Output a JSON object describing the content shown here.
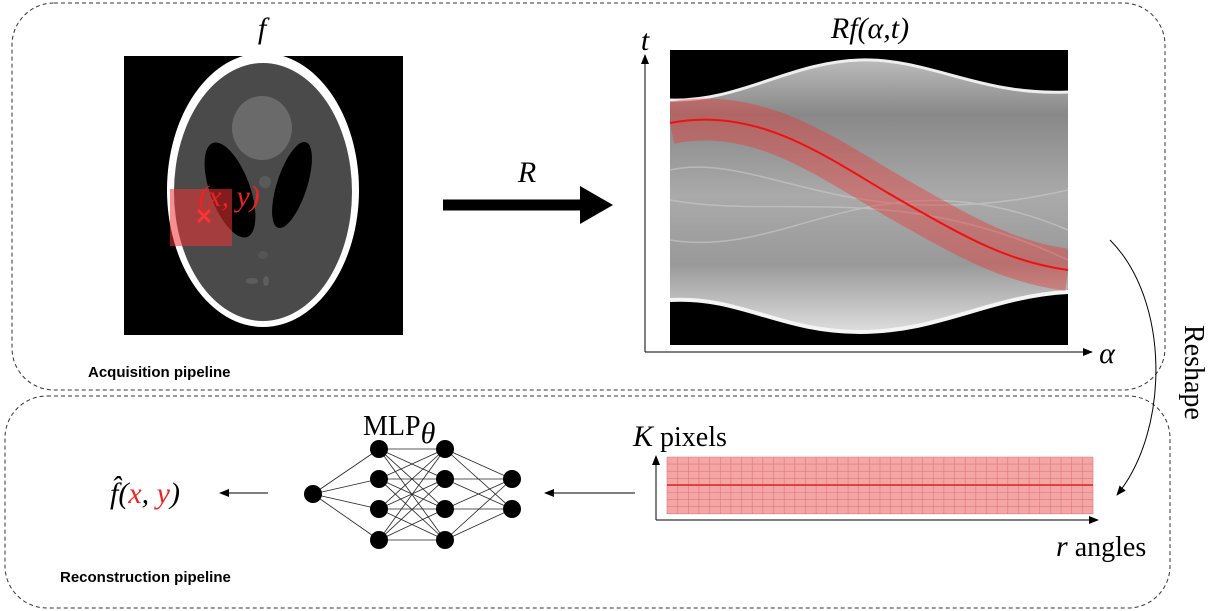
{
  "acquisition": {
    "label": "Acquisition pipeline",
    "image_label": "f",
    "point_label": "(x, y)",
    "operator_label": "R",
    "sinogram_label": "Rf(α,t)",
    "sinogram_axes": {
      "y": "t",
      "x": "α"
    }
  },
  "reshape_label": "Reshape",
  "reconstruction": {
    "label": "Reconstruction pipeline",
    "network_label": "MLP",
    "network_subscript": "θ",
    "grid_axes": {
      "y": [
        "K",
        " pixels"
      ],
      "x": [
        "r",
        " angles"
      ]
    },
    "output_parts": [
      "f̂(",
      "x",
      ", ",
      "y",
      ")"
    ]
  }
}
